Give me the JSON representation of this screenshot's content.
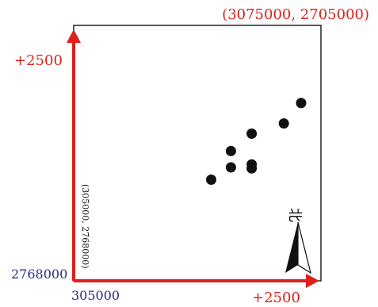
{
  "labels": {
    "top_right": "(3075000, 2705000)",
    "y_plus": "+2500",
    "x_plus": "+2500",
    "y_base": "2768000",
    "x_base": "305000",
    "origin_vertical": "(305000, 2768000)",
    "north": "北"
  },
  "colors": {
    "axis": "#e0201a",
    "coord_text": "#e0201a",
    "base_text": "#2a2a8a",
    "dot": "#111111",
    "frame": "#222222"
  },
  "points": [
    {
      "x": 2300,
      "y": 1740
    },
    {
      "x": 2125,
      "y": 1540
    },
    {
      "x": 1800,
      "y": 1440
    },
    {
      "x": 1590,
      "y": 1270
    },
    {
      "x": 1800,
      "y": 1140
    },
    {
      "x": 1590,
      "y": 1110
    },
    {
      "x": 1800,
      "y": 1100
    },
    {
      "x": 1390,
      "y": 990
    }
  ]
}
